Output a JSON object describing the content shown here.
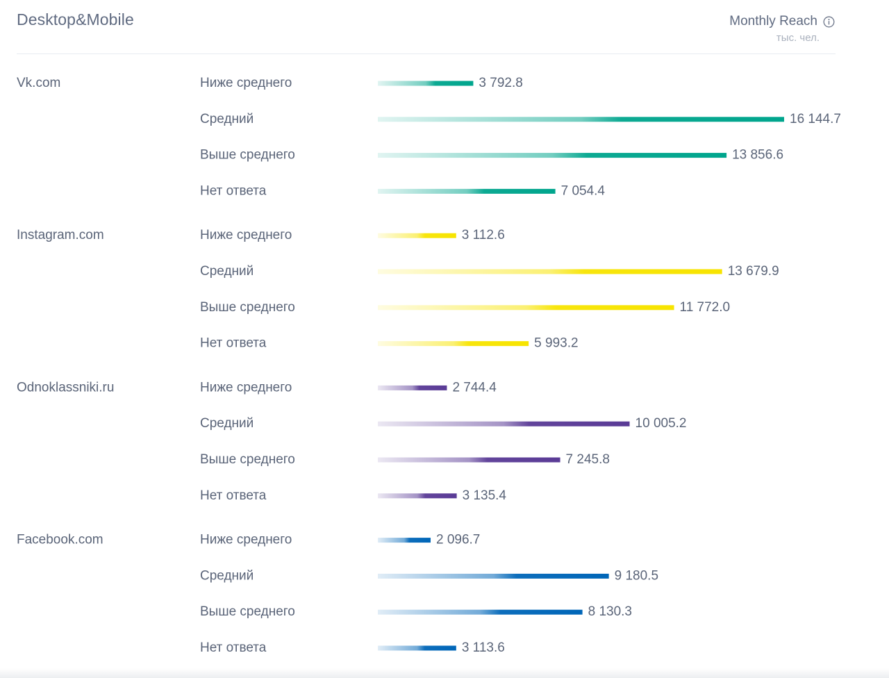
{
  "header": {
    "title": "Desktop&Mobile",
    "metric_label": "Monthly Reach",
    "metric_info_icon": "info-icon",
    "unit": "тыс. чел."
  },
  "chart_data": {
    "type": "bar",
    "orientation": "horizontal",
    "title": "Desktop&Mobile",
    "xlabel": "Monthly Reach, тыс. чел.",
    "ylabel": "",
    "xlim": [
      0,
      16144.7
    ],
    "grid": false,
    "categories": [
      "Ниже среднего",
      "Средний",
      "Выше среднего",
      "Нет ответа"
    ],
    "groups": [
      {
        "name": "Vk.com",
        "color": "#00a58d",
        "values": [
          3792.8,
          16144.7,
          13856.6,
          7054.4
        ],
        "labels": [
          "3 792.8",
          "16 144.7",
          "13 856.6",
          "7 054.4"
        ]
      },
      {
        "name": "Instagram.com",
        "color": "#f7e400",
        "values": [
          3112.6,
          13679.9,
          11772.0,
          5993.2
        ],
        "labels": [
          "3 112.6",
          "13 679.9",
          "11 772.0",
          "5 993.2"
        ]
      },
      {
        "name": "Odnoklassniki.ru",
        "color": "#5a3b96",
        "values": [
          2744.4,
          10005.2,
          7245.8,
          3135.4
        ],
        "labels": [
          "2 744.4",
          "10 005.2",
          "7 245.8",
          "3 135.4"
        ]
      },
      {
        "name": "Facebook.com",
        "color": "#0066b8",
        "values": [
          2096.7,
          9180.5,
          8130.3,
          3113.6
        ],
        "labels": [
          "2 096.7",
          "9 180.5",
          "8 130.3",
          "3 113.6"
        ]
      }
    ]
  }
}
